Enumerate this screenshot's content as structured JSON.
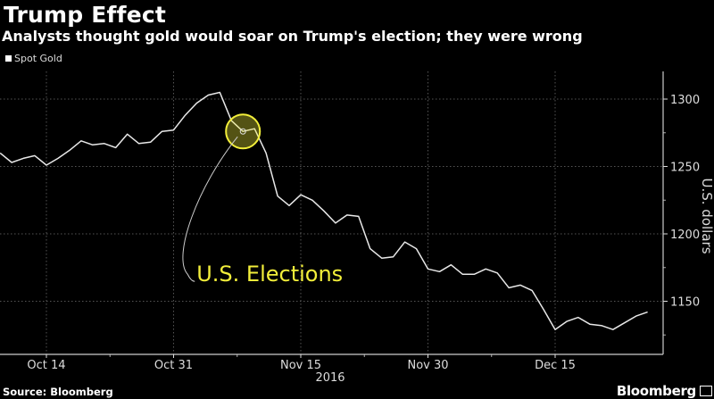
{
  "header": {
    "title": "Trump Effect",
    "subtitle": "Analysts thought gold would soar on Trump's election; they were wrong"
  },
  "footer": {
    "source": "Source: Bloomberg",
    "brand": "Bloomberg"
  },
  "chart_data": {
    "type": "line",
    "title": "Trump Effect",
    "subtitle": "Analysts thought gold would soar on Trump's election; they were wrong",
    "ylabel": "U.S. dollars",
    "xlabel": "2016",
    "ylim": [
      1110,
      1315
    ],
    "yticks": [
      1150,
      1200,
      1250,
      1300
    ],
    "xticks": [
      {
        "date": "2016-10-14",
        "label": "Oct 14"
      },
      {
        "date": "2016-10-31",
        "label": "Oct 31"
      },
      {
        "date": "2016-11-15",
        "label": "Nov 15"
      },
      {
        "date": "2016-11-30",
        "label": "Nov 30"
      },
      {
        "date": "2016-12-15",
        "label": "Dec 15"
      }
    ],
    "grid": true,
    "legend_placement": "top-left",
    "colors": {
      "line": "#ffffff",
      "annotation": "#f2ee3a",
      "background": "#000000"
    },
    "annotation": {
      "label": "U.S. Elections",
      "date": "2016-11-08",
      "value": 1276
    },
    "series": [
      {
        "name": "Spot Gold",
        "points": [
          [
            "2016-10-10",
            1260
          ],
          [
            "2016-10-11",
            1253
          ],
          [
            "2016-10-12",
            1256
          ],
          [
            "2016-10-13",
            1258
          ],
          [
            "2016-10-14",
            1251
          ],
          [
            "2016-10-17",
            1256
          ],
          [
            "2016-10-18",
            1262
          ],
          [
            "2016-10-19",
            1269
          ],
          [
            "2016-10-20",
            1266
          ],
          [
            "2016-10-21",
            1267
          ],
          [
            "2016-10-24",
            1264
          ],
          [
            "2016-10-25",
            1274
          ],
          [
            "2016-10-26",
            1267
          ],
          [
            "2016-10-27",
            1268
          ],
          [
            "2016-10-28",
            1276
          ],
          [
            "2016-10-31",
            1277
          ],
          [
            "2016-11-01",
            1288
          ],
          [
            "2016-11-02",
            1297
          ],
          [
            "2016-11-03",
            1303
          ],
          [
            "2016-11-04",
            1305
          ],
          [
            "2016-11-07",
            1284
          ],
          [
            "2016-11-08",
            1276
          ],
          [
            "2016-11-09",
            1278
          ],
          [
            "2016-11-10",
            1260
          ],
          [
            "2016-11-11",
            1228
          ],
          [
            "2016-11-14",
            1221
          ],
          [
            "2016-11-15",
            1229
          ],
          [
            "2016-11-16",
            1225
          ],
          [
            "2016-11-17",
            1217
          ],
          [
            "2016-11-18",
            1208
          ],
          [
            "2016-11-21",
            1214
          ],
          [
            "2016-11-22",
            1213
          ],
          [
            "2016-11-23",
            1189
          ],
          [
            "2016-11-24",
            1182
          ],
          [
            "2016-11-25",
            1183
          ],
          [
            "2016-11-28",
            1194
          ],
          [
            "2016-11-29",
            1189
          ],
          [
            "2016-11-30",
            1174
          ],
          [
            "2016-12-01",
            1172
          ],
          [
            "2016-12-02",
            1177
          ],
          [
            "2016-12-05",
            1170
          ],
          [
            "2016-12-06",
            1170
          ],
          [
            "2016-12-07",
            1174
          ],
          [
            "2016-12-08",
            1171
          ],
          [
            "2016-12-09",
            1160
          ],
          [
            "2016-12-12",
            1162
          ],
          [
            "2016-12-13",
            1158
          ],
          [
            "2016-12-14",
            1144
          ],
          [
            "2016-12-15",
            1129
          ],
          [
            "2016-12-16",
            1135
          ],
          [
            "2016-12-19",
            1138
          ],
          [
            "2016-12-20",
            1133
          ],
          [
            "2016-12-21",
            1132
          ],
          [
            "2016-12-22",
            1129
          ],
          [
            "2016-12-23",
            1134
          ],
          [
            "2016-12-26",
            1139
          ],
          [
            "2016-12-27",
            1142
          ]
        ]
      }
    ]
  }
}
